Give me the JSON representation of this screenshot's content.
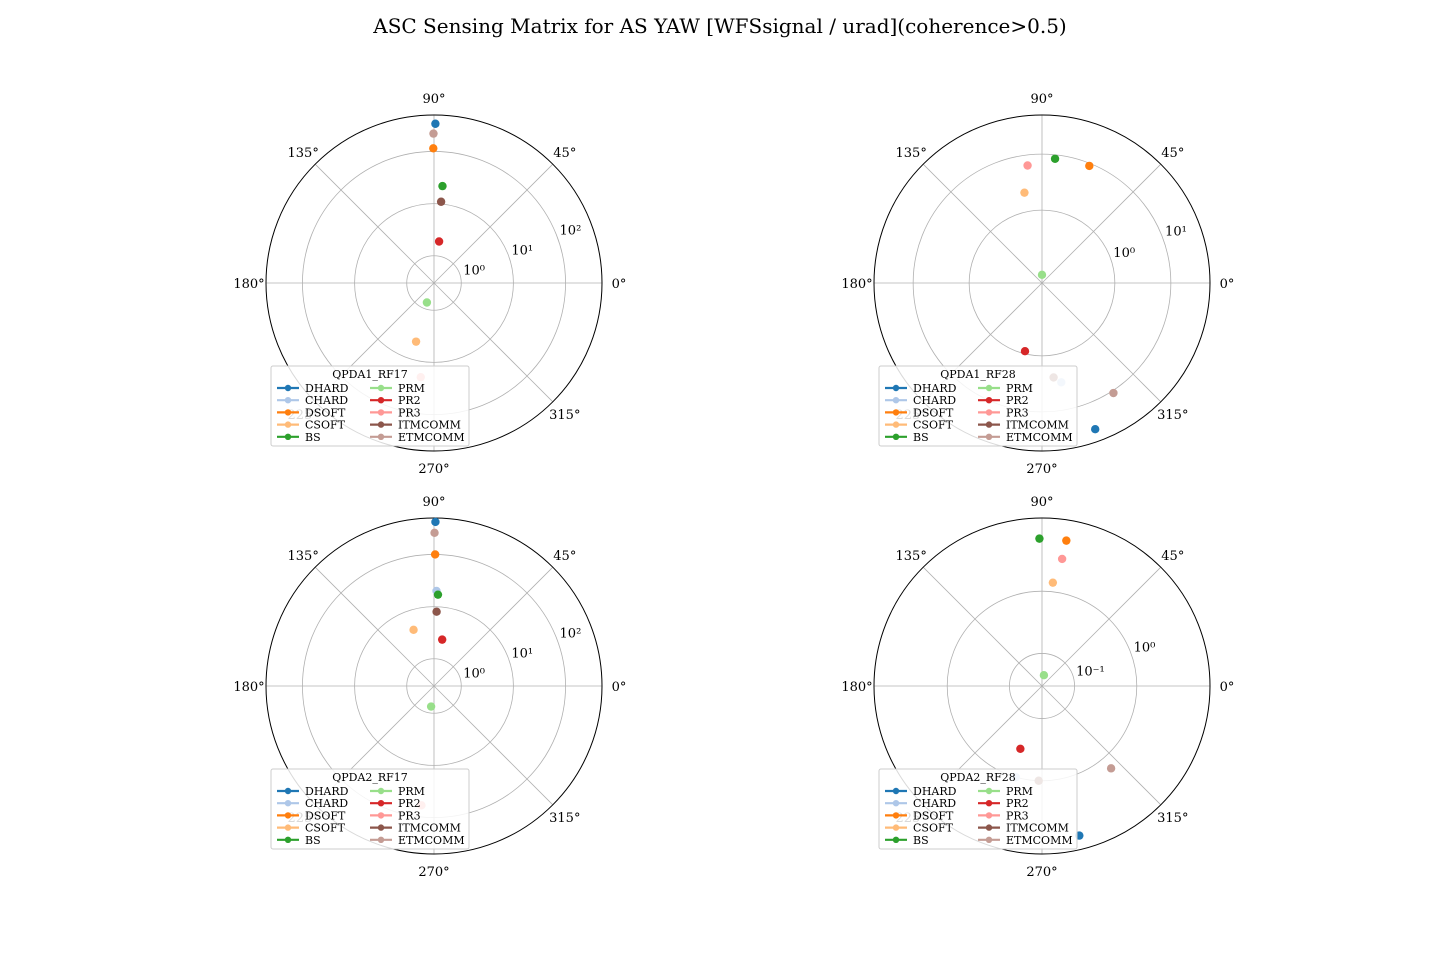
{
  "figure": {
    "title": "ASC Sensing Matrix for AS YAW [WFSsignal / urad](coherence>0.5)"
  },
  "series_meta": [
    {
      "name": "DHARD",
      "color": "#1f77b4"
    },
    {
      "name": "CHARD",
      "color": "#aec7e8"
    },
    {
      "name": "DSOFT",
      "color": "#ff7f0e"
    },
    {
      "name": "CSOFT",
      "color": "#ffbb78"
    },
    {
      "name": "BS",
      "color": "#2ca02c"
    },
    {
      "name": "PRM",
      "color": "#98df8a"
    },
    {
      "name": "PR2",
      "color": "#d62728"
    },
    {
      "name": "PR3",
      "color": "#ff9896"
    },
    {
      "name": "ITMCOMM",
      "color": "#8c564b"
    },
    {
      "name": "ETMCOMM",
      "color": "#c49c94"
    }
  ],
  "chart_data": [
    {
      "type": "polar-scatter",
      "legend_title": "QPDA1_RF17",
      "legend_position": "lower-left",
      "radial_scale": "log",
      "rlim": [
        0.3,
        500
      ],
      "radial_ticks": [
        {
          "value": 1,
          "label": "10⁰"
        },
        {
          "value": 10,
          "label": "10¹"
        },
        {
          "value": 100,
          "label": "10²"
        }
      ],
      "angle_ticks": [
        "0°",
        "45°",
        "90°",
        "135°",
        "180°",
        "225°",
        "270°",
        "315°"
      ],
      "grid": true,
      "points": [
        {
          "series": "DHARD",
          "angle_deg": 89.5,
          "magnitude": 340
        },
        {
          "series": "DSOFT",
          "angle_deg": 90.3,
          "magnitude": 115
        },
        {
          "series": "ETMCOMM",
          "angle_deg": 90.2,
          "magnitude": 220
        },
        {
          "series": "BS",
          "angle_deg": 85.0,
          "magnitude": 22
        },
        {
          "series": "ITMCOMM",
          "angle_deg": 85.0,
          "magnitude": 11
        },
        {
          "series": "PR2",
          "angle_deg": 83.0,
          "magnitude": 1.9
        },
        {
          "series": "PRM",
          "angle_deg": 250.0,
          "magnitude": 0.75
        },
        {
          "series": "CSOFT",
          "angle_deg": 253.0,
          "magnitude": 4.5
        },
        {
          "series": "PR3",
          "angle_deg": 262.0,
          "magnitude": 20
        }
      ]
    },
    {
      "type": "polar-scatter",
      "legend_title": "QPDA1_RF28",
      "legend_position": "lower-left",
      "radial_scale": "log",
      "rlim": [
        0.05,
        50
      ],
      "radial_ticks": [
        {
          "value": 1,
          "label": "10⁰"
        },
        {
          "value": 10,
          "label": "10¹"
        }
      ],
      "angle_ticks": [
        "0°",
        "45°",
        "90°",
        "135°",
        "180°",
        "225°",
        "270°",
        "315°"
      ],
      "grid": true,
      "points": [
        {
          "series": "BS",
          "angle_deg": 84.0,
          "magnitude": 8.5
        },
        {
          "series": "DSOFT",
          "angle_deg": 68.0,
          "magnitude": 9.0
        },
        {
          "series": "PR3",
          "angle_deg": 97.0,
          "magnitude": 6.5
        },
        {
          "series": "CSOFT",
          "angle_deg": 101.0,
          "magnitude": 2.2
        },
        {
          "series": "PRM",
          "angle_deg": 90.0,
          "magnitude": 0.07
        },
        {
          "series": "PR2",
          "angle_deg": 256.0,
          "magnitude": 0.9
        },
        {
          "series": "ITMCOMM",
          "angle_deg": 277.0,
          "magnitude": 2.5
        },
        {
          "series": "CHARD",
          "angle_deg": 281.0,
          "magnitude": 3.2
        },
        {
          "series": "ETMCOMM",
          "angle_deg": 303.0,
          "magnitude": 11
        },
        {
          "series": "DHARD",
          "angle_deg": 290.0,
          "magnitude": 30
        }
      ]
    },
    {
      "type": "polar-scatter",
      "legend_title": "QPDA2_RF17",
      "legend_position": "lower-left",
      "radial_scale": "log",
      "rlim": [
        0.3,
        500
      ],
      "radial_ticks": [
        {
          "value": 1,
          "label": "10⁰"
        },
        {
          "value": 10,
          "label": "10¹"
        },
        {
          "value": 100,
          "label": "10²"
        }
      ],
      "angle_ticks": [
        "0°",
        "45°",
        "90°",
        "135°",
        "180°",
        "225°",
        "270°",
        "315°"
      ],
      "grid": true,
      "points": [
        {
          "series": "DHARD",
          "angle_deg": 89.5,
          "magnitude": 420
        },
        {
          "series": "ETMCOMM",
          "angle_deg": 89.8,
          "magnitude": 260
        },
        {
          "series": "DSOFT",
          "angle_deg": 89.5,
          "magnitude": 100
        },
        {
          "series": "CHARD",
          "angle_deg": 88.5,
          "magnitude": 20
        },
        {
          "series": "BS",
          "angle_deg": 87.5,
          "magnitude": 17
        },
        {
          "series": "ITMCOMM",
          "angle_deg": 88.0,
          "magnitude": 8
        },
        {
          "series": "CSOFT",
          "angle_deg": 110.0,
          "magnitude": 4.2
        },
        {
          "series": "PR2",
          "angle_deg": 80.0,
          "magnitude": 2.4
        },
        {
          "series": "PRM",
          "angle_deg": 262.0,
          "magnitude": 0.75
        },
        {
          "series": "PR3",
          "angle_deg": 264.0,
          "magnitude": 60
        }
      ]
    },
    {
      "type": "polar-scatter",
      "legend_title": "QPDA2_RF28",
      "legend_position": "lower-left",
      "radial_scale": "log",
      "rlim": [
        0.03,
        15
      ],
      "radial_ticks": [
        {
          "value": 0.1,
          "label": "10⁻¹"
        },
        {
          "value": 1,
          "label": "10⁰"
        }
      ],
      "angle_ticks": [
        "0°",
        "45°",
        "90°",
        "135°",
        "180°",
        "225°",
        "270°",
        "315°"
      ],
      "grid": true,
      "points": [
        {
          "series": "BS",
          "angle_deg": 91.0,
          "magnitude": 7
        },
        {
          "series": "DSOFT",
          "angle_deg": 80.5,
          "magnitude": 7
        },
        {
          "series": "PR3",
          "angle_deg": 81.0,
          "magnitude": 3.5
        },
        {
          "series": "CSOFT",
          "angle_deg": 84.0,
          "magnitude": 1.4
        },
        {
          "series": "PRM",
          "angle_deg": 80.0,
          "magnitude": 0.045
        },
        {
          "series": "PR2",
          "angle_deg": 251.0,
          "magnitude": 0.35
        },
        {
          "series": "ITMCOMM",
          "angle_deg": 268.0,
          "magnitude": 1.0
        },
        {
          "series": "CHARD",
          "angle_deg": 254.0,
          "magnitude": 1.0
        },
        {
          "series": "ETMCOMM",
          "angle_deg": 310.0,
          "magnitude": 1.6
        },
        {
          "series": "DHARD",
          "angle_deg": 284.0,
          "magnitude": 9
        }
      ]
    }
  ]
}
